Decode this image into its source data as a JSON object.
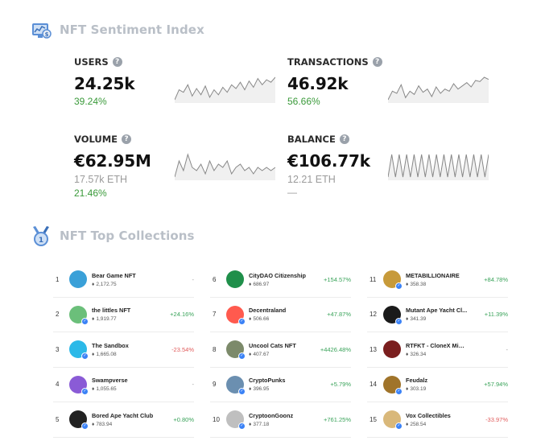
{
  "sentiment": {
    "title": "NFT Sentiment Index",
    "stats": [
      {
        "label": "USERS",
        "value": "24.25k",
        "pct": "39.24%",
        "sparkline": [
          14,
          22,
          20,
          26,
          17,
          23,
          18,
          25,
          16,
          22,
          18,
          24,
          20,
          26,
          23,
          28,
          22,
          29,
          24,
          31,
          26,
          30,
          28,
          32
        ]
      },
      {
        "label": "TRANSACTIONS",
        "value": "46.92k",
        "pct": "56.66%",
        "sparkline": [
          12,
          20,
          18,
          26,
          14,
          20,
          17,
          25,
          19,
          22,
          15,
          24,
          18,
          22,
          20,
          27,
          22,
          25,
          28,
          24,
          30,
          29,
          33,
          31
        ]
      },
      {
        "label": "VOLUME",
        "value": "€62.95M",
        "sub": "17.57k ETH",
        "pct": "21.46%",
        "sparkline": [
          20,
          30,
          24,
          34,
          26,
          24,
          28,
          22,
          30,
          24,
          28,
          26,
          30,
          22,
          26,
          28,
          24,
          26,
          22,
          26,
          24,
          26,
          24,
          26
        ]
      },
      {
        "label": "BALANCE",
        "value": "€106.77k",
        "sub": "12.21 ETH",
        "dash": "—",
        "sparkline": [
          10,
          30,
          10,
          30,
          10,
          30,
          10,
          30,
          10,
          30,
          10,
          30,
          10,
          30,
          10,
          30,
          10,
          30,
          10,
          30,
          10,
          30,
          10,
          30,
          10,
          30,
          10,
          30
        ]
      }
    ]
  },
  "collections": {
    "title": "NFT Top Collections",
    "columns": [
      [
        {
          "rank": "1",
          "name": "Bear Game NFT",
          "price": "2,172.75",
          "change": "-",
          "trend": "neu",
          "color": "#3aa0d8",
          "verified": false
        },
        {
          "rank": "2",
          "name": "the littles NFT",
          "price": "1,919.77",
          "change": "+24.16%",
          "trend": "pos",
          "color": "#6bbf7a",
          "verified": true
        },
        {
          "rank": "3",
          "name": "The Sandbox",
          "price": "1,665.08",
          "change": "-23.54%",
          "trend": "neg",
          "color": "#2cb9e8",
          "verified": true
        },
        {
          "rank": "4",
          "name": "Swampverse",
          "price": "1,055.65",
          "change": "-",
          "trend": "neu",
          "color": "#8a5bd6",
          "verified": true
        },
        {
          "rank": "5",
          "name": "Bored Ape Yacht Club",
          "price": "783.94",
          "change": "+0.80%",
          "trend": "pos",
          "color": "#222222",
          "verified": true
        }
      ],
      [
        {
          "rank": "6",
          "name": "CityDAO Citizenship",
          "price": "686.97",
          "change": "+154.57%",
          "trend": "pos",
          "color": "#1f8f4a",
          "verified": false
        },
        {
          "rank": "7",
          "name": "Decentraland",
          "price": "506.66",
          "change": "+47.87%",
          "trend": "pos",
          "color": "#ff5a4e",
          "verified": true
        },
        {
          "rank": "8",
          "name": "Uncool Cats NFT",
          "price": "407.67",
          "change": "+4426.48%",
          "trend": "pos",
          "color": "#7c8a6a",
          "verified": true
        },
        {
          "rank": "9",
          "name": "CryptoPunks",
          "price": "396.95",
          "change": "+5.79%",
          "trend": "pos",
          "color": "#6b8fb0",
          "verified": true
        },
        {
          "rank": "10",
          "name": "CryptoonGoonz",
          "price": "377.18",
          "change": "+761.25%",
          "trend": "pos",
          "color": "#bfbfbf",
          "verified": true
        }
      ],
      [
        {
          "rank": "11",
          "name": "METABILLIONAIRE",
          "price": "358.38",
          "change": "+84.78%",
          "trend": "pos",
          "color": "#c79a3a",
          "verified": true
        },
        {
          "rank": "12",
          "name": "Mutant Ape Yacht Cl...",
          "price": "341.39",
          "change": "+11.39%",
          "trend": "pos",
          "color": "#1a1a1a",
          "verified": true
        },
        {
          "rank": "13",
          "name": "RTFKT - CloneX Mintvial",
          "price": "326.34",
          "change": "-",
          "trend": "neu",
          "color": "#7a1e1e",
          "verified": false
        },
        {
          "rank": "14",
          "name": "Feudalz",
          "price": "303.19",
          "change": "+57.94%",
          "trend": "pos",
          "color": "#a0742a",
          "verified": true
        },
        {
          "rank": "15",
          "name": "Vox Collectibles",
          "price": "258.54",
          "change": "-33.97%",
          "trend": "neg",
          "color": "#d9b87a",
          "verified": true
        }
      ]
    ]
  }
}
